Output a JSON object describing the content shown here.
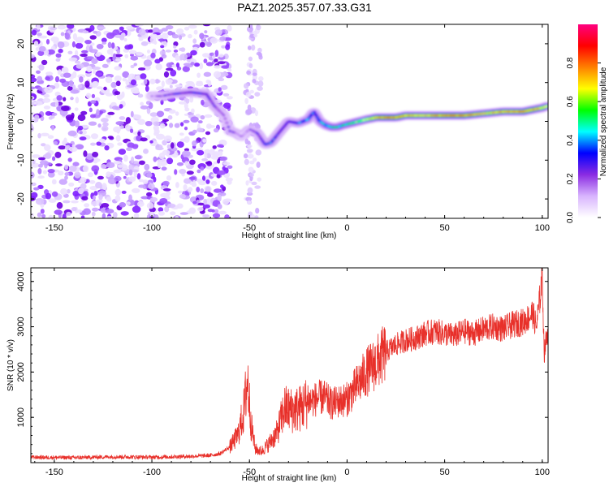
{
  "title": "PAZ1.2025.357.07.33.G31",
  "chart_data": [
    {
      "type": "heatmap",
      "title": "PAZ1.2025.357.07.33.G31",
      "xlabel": "Height of straight line (km)",
      "ylabel": "Frequency (Hz)",
      "xlim": [
        -162,
        103
      ],
      "ylim": [
        -25,
        25
      ],
      "xticks": [
        -150,
        -100,
        -50,
        0,
        50,
        100
      ],
      "yticks": [
        -20,
        -10,
        0,
        10,
        20
      ],
      "colorbar": {
        "label": "Normalized spectral amplitude",
        "range": [
          0,
          1
        ],
        "ticks": [
          "0.0",
          "0.2",
          "0.4",
          "0.6",
          "0.8"
        ],
        "colors": [
          "#ffffff",
          "#d8b4fe",
          "#8a2be2",
          "#0000ff",
          "#00ffff",
          "#00ff00",
          "#ffff00",
          "#ff8000",
          "#ff0000",
          "#ff0080"
        ]
      },
      "ridge": {
        "x": [
          -100,
          -95,
          -90,
          -80,
          -72,
          -68,
          -63,
          -60,
          -57,
          -54,
          -50,
          -46,
          -42,
          -39,
          -35,
          -30,
          -25,
          -20,
          -17,
          -14,
          -11,
          -8,
          -5,
          -2,
          2,
          6,
          10,
          15,
          20,
          25,
          30,
          40,
          50,
          60,
          70,
          80,
          90,
          95,
          100,
          103
        ],
        "y": [
          6.5,
          6.5,
          7,
          7.5,
          7,
          4,
          1.5,
          -2.5,
          -3,
          -4,
          -2,
          -3,
          -6,
          -5.5,
          -3,
          0,
          -0.5,
          0.5,
          2.5,
          0,
          -1,
          -1.5,
          -1.5,
          -1,
          -0.5,
          0,
          0.5,
          1,
          1,
          1,
          1.5,
          1.5,
          1.5,
          1.5,
          2,
          2.5,
          2.5,
          3,
          3.5,
          4
        ],
        "amplitude": [
          0.15,
          0.2,
          0.25,
          0.3,
          0.3,
          0.25,
          0.2,
          0.25,
          0.2,
          0.15,
          0.2,
          0.25,
          0.3,
          0.35,
          0.3,
          0.3,
          0.35,
          0.4,
          0.35,
          0.4,
          0.45,
          0.5,
          0.5,
          0.5,
          0.55,
          0.6,
          0.65,
          0.75,
          0.8,
          0.8,
          0.75,
          0.7,
          0.8,
          0.8,
          0.7,
          0.75,
          0.8,
          0.75,
          0.7,
          0.65
        ]
      }
    },
    {
      "type": "line",
      "xlabel": "Height of straight line (km)",
      "ylabel": "SNR (10 * v/v)",
      "xlim": [
        -162,
        103
      ],
      "ylim": [
        0,
        4300
      ],
      "xticks": [
        -150,
        -100,
        -50,
        0,
        50,
        100
      ],
      "yticks": [
        1000,
        2000,
        3000,
        4000
      ],
      "color": "#e8302a",
      "series": [
        {
          "name": "SNR",
          "x": [
            -162,
            -140,
            -120,
            -100,
            -80,
            -70,
            -65,
            -60,
            -56,
            -53,
            -51,
            -49,
            -47,
            -44,
            -40,
            -36,
            -32,
            -28,
            -24,
            -20,
            -16,
            -12,
            -8,
            -4,
            0,
            5,
            10,
            15,
            20,
            25,
            30,
            35,
            40,
            45,
            50,
            55,
            60,
            65,
            70,
            75,
            80,
            85,
            90,
            93,
            95,
            97,
            99,
            100,
            101,
            103
          ],
          "values": [
            120,
            110,
            130,
            120,
            140,
            160,
            200,
            350,
            600,
            1100,
            1850,
            800,
            300,
            250,
            420,
            650,
            1200,
            1150,
            1200,
            1350,
            1400,
            1450,
            1300,
            1350,
            1400,
            1700,
            2000,
            2200,
            2450,
            2600,
            2700,
            2750,
            2850,
            2900,
            2850,
            2800,
            2900,
            2850,
            2950,
            3000,
            2950,
            3050,
            3100,
            3200,
            3300,
            3000,
            3700,
            4200,
            2400,
            3000
          ]
        }
      ]
    }
  ]
}
